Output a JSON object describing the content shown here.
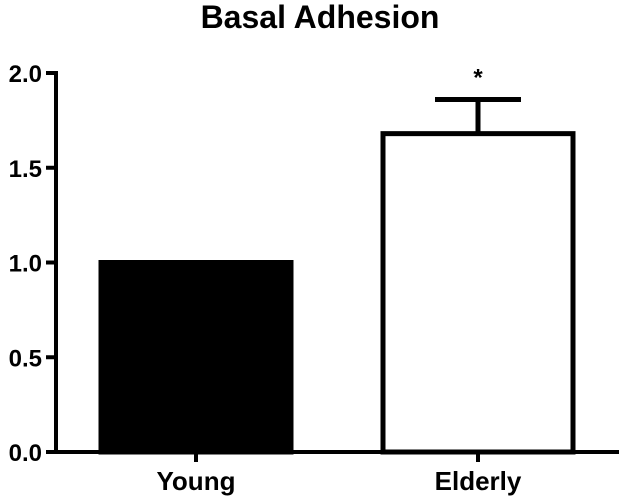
{
  "chart_data": {
    "type": "bar",
    "title": "Basal Adhesion",
    "categories": [
      "Young",
      "Elderly"
    ],
    "values": [
      1.0,
      1.68
    ],
    "error_upper": [
      0,
      0.18
    ],
    "bar_fills": [
      "#000000",
      "#ffffff"
    ],
    "bar_stroke": "#000000",
    "annotations": [
      "",
      "*"
    ],
    "ylim": [
      0,
      2.0
    ],
    "yticks": [
      0.0,
      0.5,
      1.0,
      1.5,
      2.0
    ],
    "ytick_labels": [
      "0.0",
      "0.5",
      "1.0",
      "1.5",
      "2.0"
    ],
    "xlabel": "",
    "ylabel": "",
    "grid": false,
    "legend": false
  }
}
